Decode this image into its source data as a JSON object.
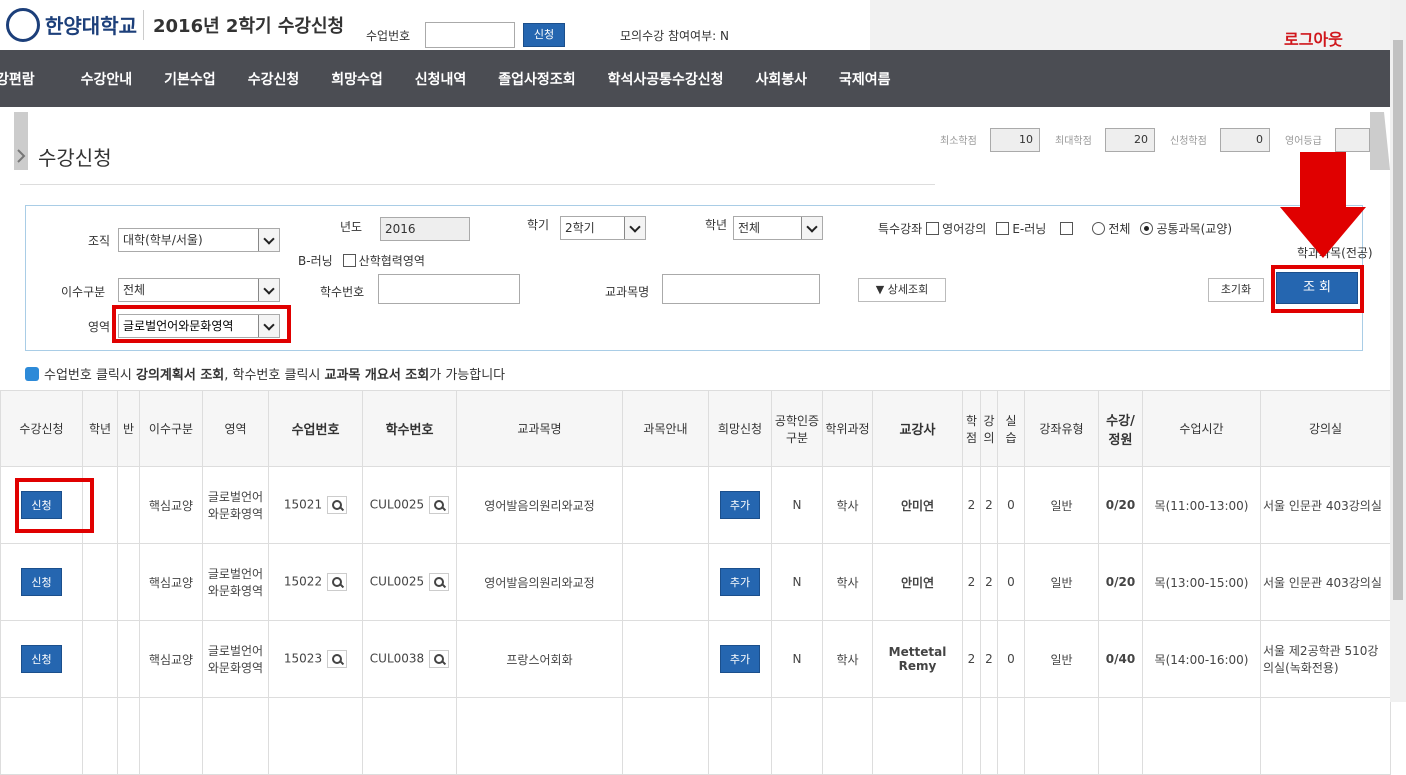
{
  "header": {
    "logo": "한양대학교",
    "title": "2016년 2학기 수강신청",
    "class_no_label": "수업번호",
    "submit": "신청",
    "mock_status": "모의수강 참여여부: N",
    "logout": "로그아웃"
  },
  "nav": [
    "강편람",
    "수강안내",
    "기본수업",
    "수강신청",
    "희망수업",
    "신청내역",
    "졸업사정조회",
    "학석사공통수강신청",
    "사회봉사",
    "국제여름"
  ],
  "page_title": "수강신청",
  "credits": [
    {
      "label": "최소학점",
      "value": 10
    },
    {
      "label": "최대학점",
      "value": 20
    },
    {
      "label": "신청학점",
      "value": 0
    },
    {
      "label": "영어등급"
    }
  ],
  "filters": {
    "org_label": "조직",
    "org_value": "대학(학부/서울)",
    "year_label": "년도",
    "year_value": "2016",
    "semester_label": "학기",
    "semester_value": "2학기",
    "grade_label": "학년",
    "grade_value": "전체",
    "special_label": "특수강좌",
    "check_english": "영어강의",
    "check_elearning": "E-러닝",
    "radio_all": "전체",
    "radio_common": "공통과목(교양)",
    "radio_major": "학과과목(전공)",
    "blearning_label": "B-러닝",
    "check_industry": "산학협력영역",
    "type_label": "이수구분",
    "type_value": "전체",
    "code_label": "학수번호",
    "name_label": "교과목명",
    "detail": "▼ 상세조회",
    "reset": "초기화",
    "search": "조 회",
    "area_label": "영역",
    "area_value": "글로벌언어와문화영역"
  },
  "notice": [
    "수업번호 클릭시 ",
    "강의계획서 조회",
    ", 학수번호 클릭시 ",
    "교과목 개요서 조회",
    "가 가능합니다"
  ],
  "table": {
    "columns": [
      "수강신청",
      "학년",
      "반",
      "이수구분",
      "영역",
      "수업번호",
      "학수번호",
      "교과목명",
      "과목안내",
      "희망신청",
      "공학인증구분",
      "학위과정",
      "교강사",
      "학점",
      "강의",
      "실습",
      "강좌유형",
      "수강/정원",
      "수업시간",
      "강의실"
    ],
    "rows": [
      {
        "enroll": "신청",
        "category": "핵심교양",
        "area": "글로벌언어와문화영역",
        "class_no": "15021",
        "course_code": "CUL0025",
        "course_name": "영어발음의원리와교정",
        "wish": "추가",
        "eng_cert": "N",
        "degree": "학사",
        "instructor": "안미연",
        "credit": 2,
        "lecture": 2,
        "lab": 0,
        "type": "일반",
        "enrolled": "0/20",
        "time": "목(11:00-13:00)",
        "room": "서울 인문관 403강의실"
      },
      {
        "enroll": "신청",
        "category": "핵심교양",
        "area": "글로벌언어와문화영역",
        "class_no": "15022",
        "course_code": "CUL0025",
        "course_name": "영어발음의원리와교정",
        "wish": "추가",
        "eng_cert": "N",
        "degree": "학사",
        "instructor": "안미연",
        "credit": 2,
        "lecture": 2,
        "lab": 0,
        "type": "일반",
        "enrolled": "0/20",
        "time": "목(13:00-15:00)",
        "room": "서울 인문관 403강의실"
      },
      {
        "enroll": "신청",
        "category": "핵심교양",
        "area": "글로벌언어와문화영역",
        "class_no": "15023",
        "course_code": "CUL0038",
        "course_name": "프랑스어회화",
        "wish": "추가",
        "eng_cert": "N",
        "degree": "학사",
        "instructor": "Mettetal Remy",
        "credit": 2,
        "lecture": 2,
        "lab": 0,
        "type": "일반",
        "enrolled": "0/40",
        "time": "목(14:00-16:00)",
        "room": "서울 제2공학관 510강의실(녹화전용)"
      }
    ]
  }
}
